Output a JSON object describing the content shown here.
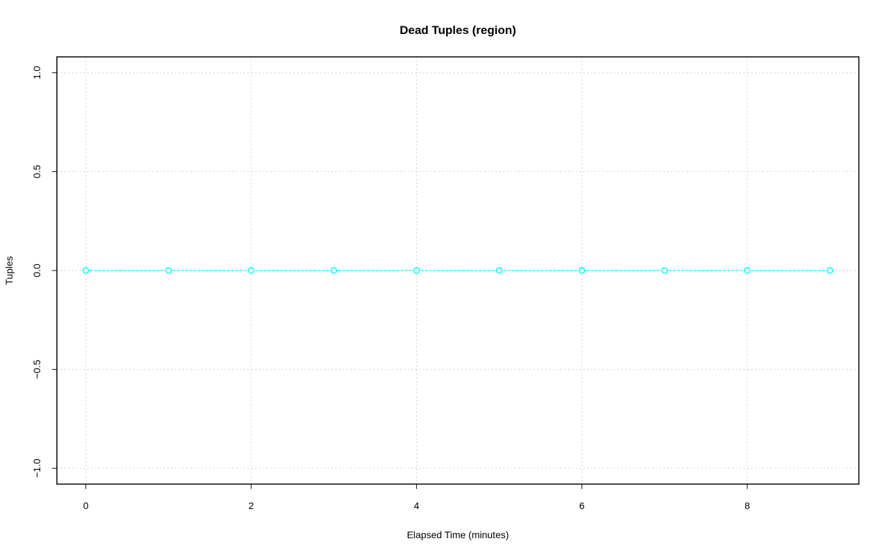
{
  "chart_data": {
    "type": "line",
    "title": "Dead Tuples (region)",
    "xlabel": "Elapsed Time (minutes)",
    "ylabel": "Tuples",
    "xlim": [
      -0.35,
      9.35
    ],
    "ylim": [
      -1.08,
      1.08
    ],
    "x_ticks": [
      0,
      2,
      4,
      6,
      8
    ],
    "y_ticks": [
      -1.0,
      -0.5,
      0.0,
      0.5,
      1.0
    ],
    "x_grid": [
      0,
      2,
      4,
      6,
      8
    ],
    "y_grid": [
      -1.0,
      -0.5,
      0.0,
      0.5,
      1.0
    ],
    "grid": true,
    "series": [
      {
        "color": "#00ffff",
        "line_style": "dashed",
        "marker": "open-circle",
        "x": [
          0,
          1,
          2,
          3,
          4,
          5,
          6,
          7,
          8,
          9
        ],
        "y": [
          0,
          0,
          0,
          0,
          0,
          0,
          0,
          0,
          0,
          0
        ]
      }
    ]
  }
}
